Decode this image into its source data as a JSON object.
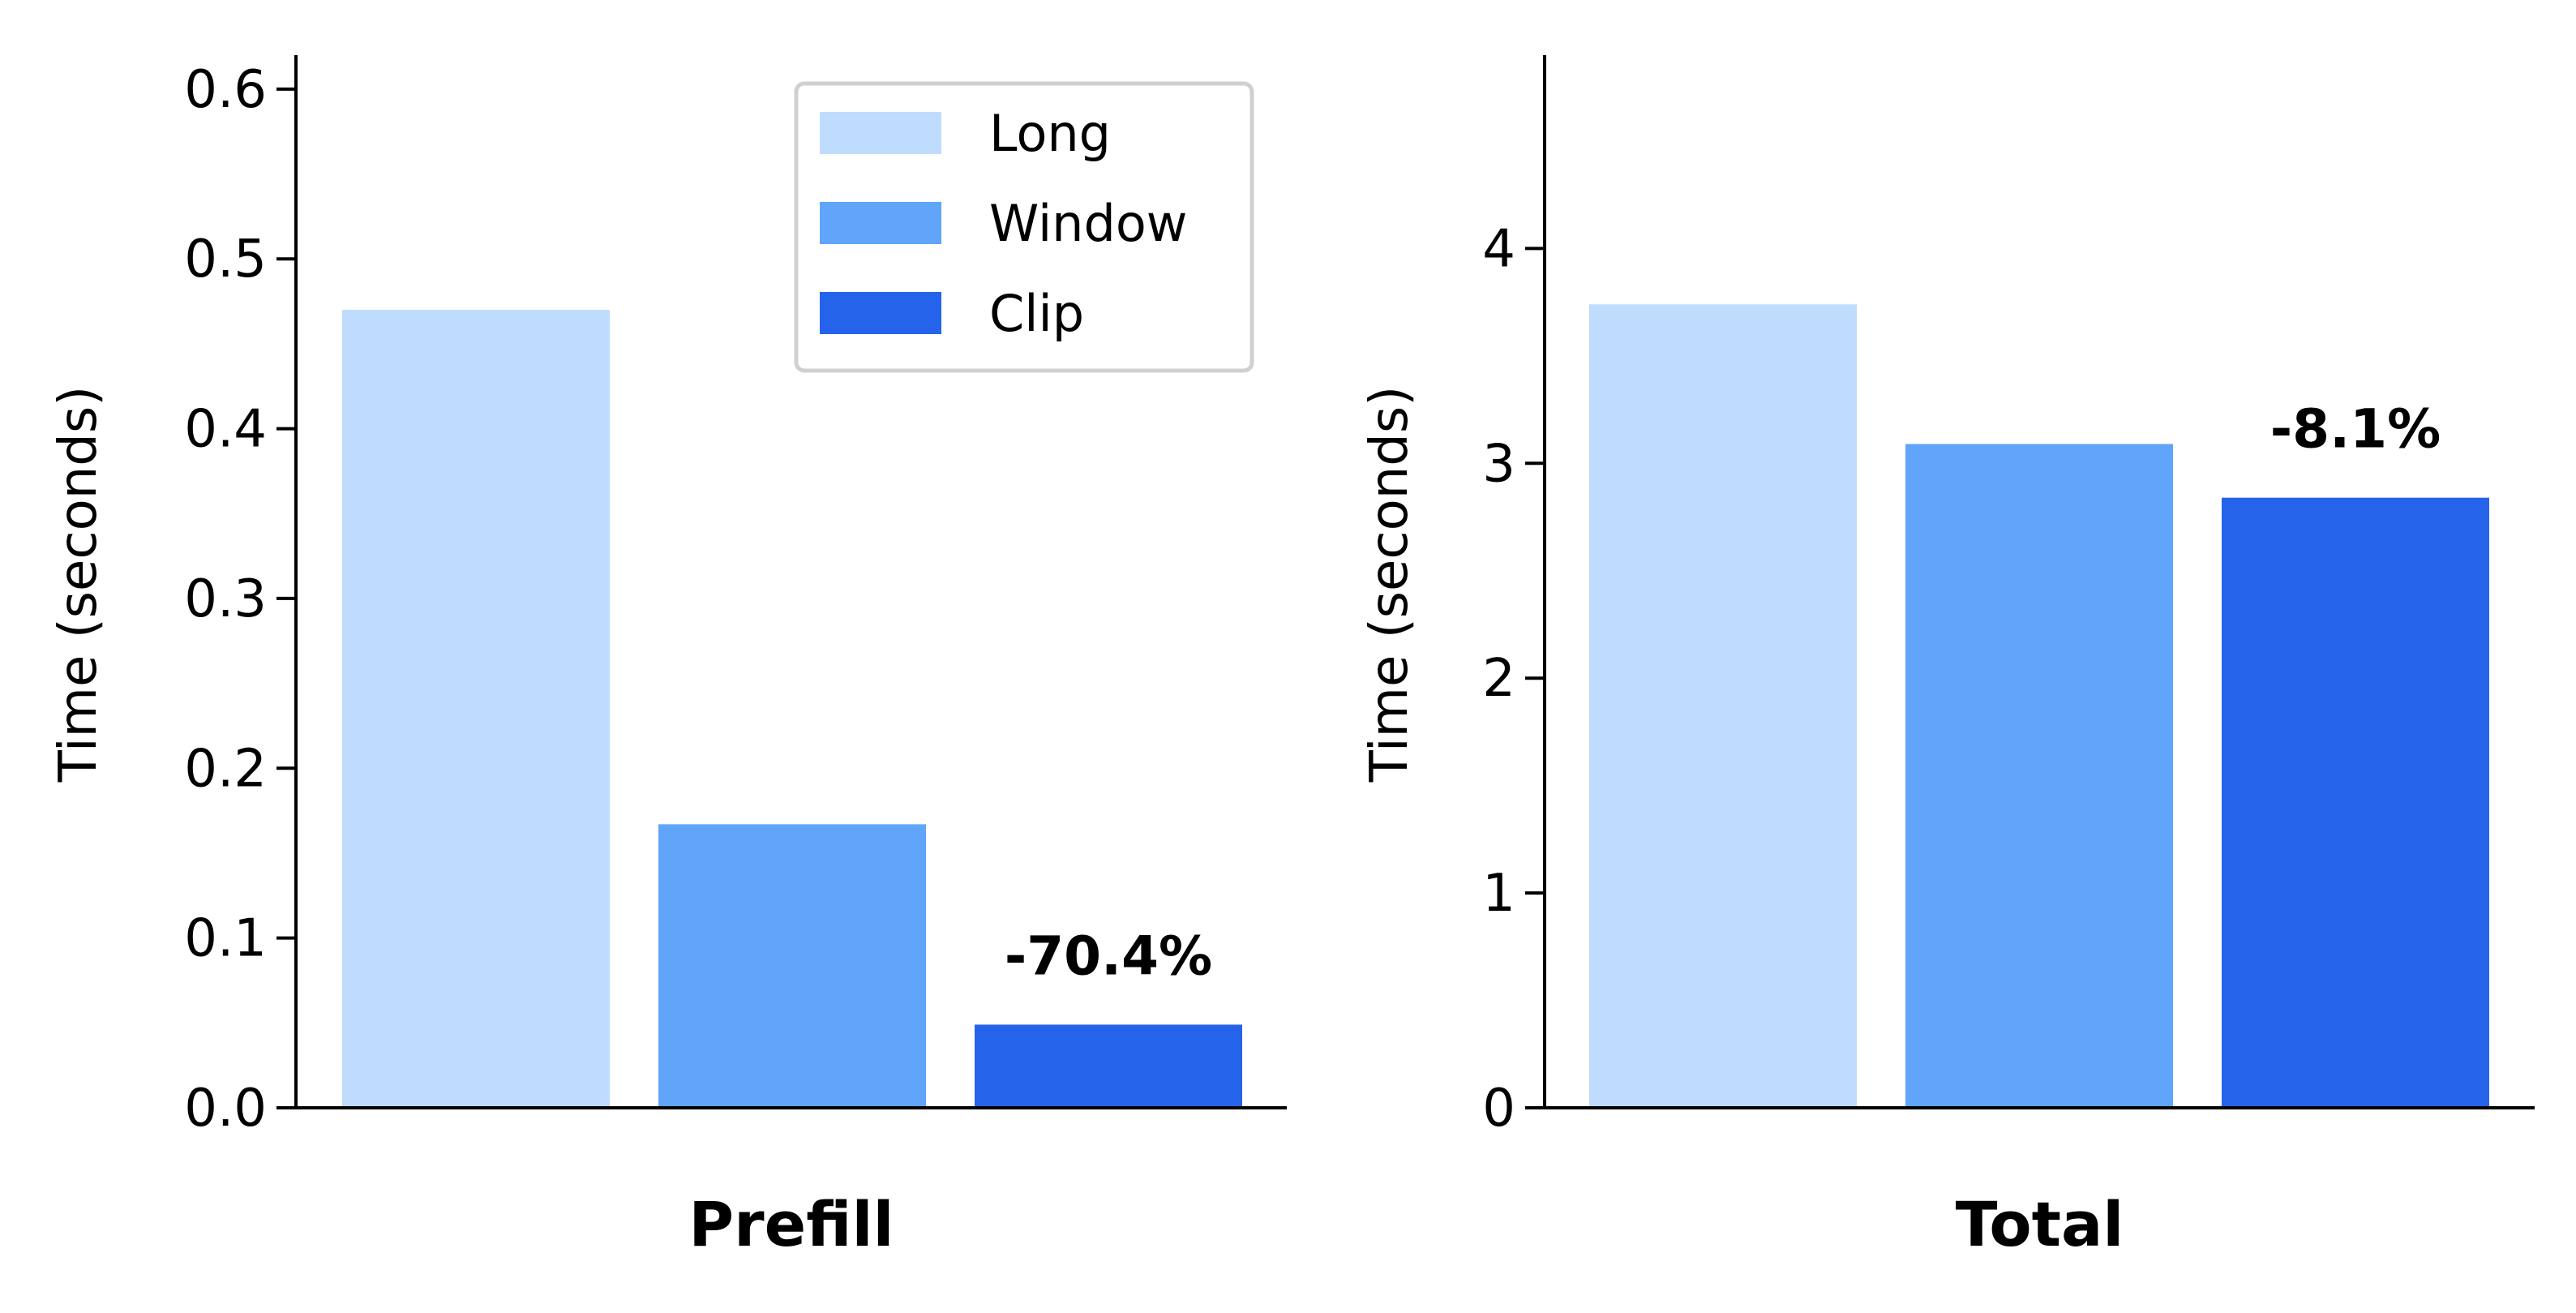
{
  "colors": {
    "Long": "#bfdbfe",
    "Window": "#60a5fa",
    "Clip": "#2563eb",
    "legend_border": "#d0d0d0",
    "axis": "#000000"
  },
  "legend": {
    "placement": "top-right of left panel",
    "entries": [
      "Long",
      "Window",
      "Clip"
    ]
  },
  "chart_data": [
    {
      "type": "bar",
      "title": "",
      "xlabel": "Prefill",
      "ylabel": "Time (seconds)",
      "ylim": [
        0,
        0.62
      ],
      "yticks": [
        0.0,
        0.1,
        0.2,
        0.3,
        0.4,
        0.5,
        0.6
      ],
      "ytick_labels": [
        "0.0",
        "0.1",
        "0.2",
        "0.3",
        "0.4",
        "0.5",
        "0.6"
      ],
      "grid": false,
      "series": [
        {
          "name": "Long",
          "value": 0.47
        },
        {
          "name": "Window",
          "value": 0.167
        },
        {
          "name": "Clip",
          "value": 0.049
        }
      ],
      "annotation": {
        "series": "Clip",
        "text": "-70.4%"
      }
    },
    {
      "type": "bar",
      "title": "",
      "xlabel": "Total",
      "ylabel": "Time (seconds)",
      "ylim": [
        0,
        4.9
      ],
      "yticks": [
        0,
        1,
        2,
        3,
        4
      ],
      "ytick_labels": [
        "0",
        "1",
        "2",
        "3",
        "4"
      ],
      "grid": false,
      "series": [
        {
          "name": "Long",
          "value": 3.74
        },
        {
          "name": "Window",
          "value": 3.09
        },
        {
          "name": "Clip",
          "value": 2.84
        }
      ],
      "annotation": {
        "series": "Clip",
        "text": "-8.1%"
      }
    }
  ]
}
